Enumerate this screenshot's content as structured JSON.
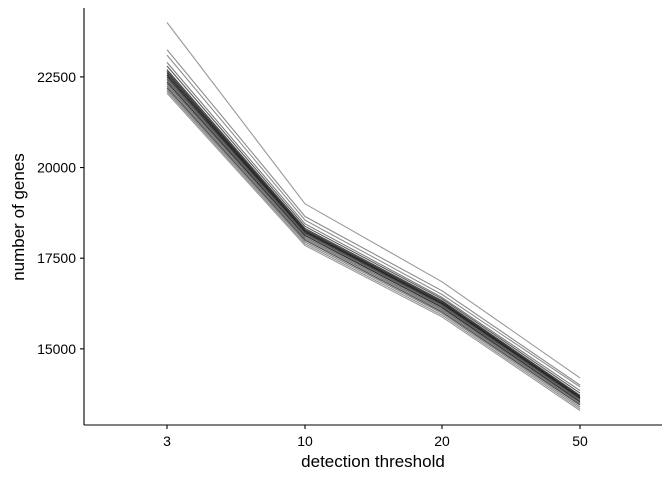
{
  "chart_data": {
    "type": "line",
    "xlabel": "detection threshold",
    "ylabel": "number of genes",
    "categories": [
      "3",
      "10",
      "20",
      "50"
    ],
    "y_ticks": [
      15000,
      17500,
      20000,
      22500
    ],
    "ylim": [
      12900,
      24400
    ],
    "grid": false,
    "legend": "none",
    "line_color": "#000000",
    "series": [
      {
        "values": [
          24000,
          19000,
          16850,
          14200
        ],
        "color": "#999999"
      },
      {
        "values": [
          23250,
          18650,
          16600,
          14000
        ],
        "color": "#8a8a8a"
      },
      {
        "values": [
          23100,
          18550,
          16500,
          13950
        ],
        "color": "#8f8f8f"
      },
      {
        "values": [
          22900,
          18450,
          16420,
          13850
        ],
        "color": "#7d7d7d"
      },
      {
        "values": [
          22800,
          18380,
          16380,
          13780
        ],
        "color": "#5a5a5a"
      },
      {
        "values": [
          22700,
          18320,
          16330,
          13720
        ],
        "color": "#444444"
      },
      {
        "values": [
          22650,
          18280,
          16300,
          13690
        ],
        "color": "#333333"
      },
      {
        "values": [
          22600,
          18250,
          16270,
          13660
        ],
        "color": "#2b2b2b"
      },
      {
        "values": [
          22550,
          18220,
          16250,
          13640
        ],
        "color": "#222222"
      },
      {
        "values": [
          22500,
          18200,
          16230,
          13620
        ],
        "color": "#3a3a3a"
      },
      {
        "values": [
          22450,
          18180,
          16200,
          13600
        ],
        "color": "#555555"
      },
      {
        "values": [
          22400,
          18150,
          16170,
          13570
        ],
        "color": "#666666"
      },
      {
        "values": [
          22350,
          18120,
          16140,
          13540
        ],
        "color": "#2f2f2f"
      },
      {
        "values": [
          22300,
          18080,
          16100,
          13510
        ],
        "color": "#707070"
      },
      {
        "values": [
          22250,
          18040,
          16060,
          13480
        ],
        "color": "#777777"
      },
      {
        "values": [
          22200,
          18000,
          16020,
          13450
        ],
        "color": "#4a4a4a"
      },
      {
        "values": [
          22150,
          17950,
          15980,
          13400
        ],
        "color": "#858585"
      },
      {
        "values": [
          22100,
          17900,
          15930,
          13350
        ],
        "color": "#909090"
      },
      {
        "values": [
          22050,
          17850,
          15880,
          13300
        ],
        "color": "#9a9a9a"
      }
    ]
  }
}
